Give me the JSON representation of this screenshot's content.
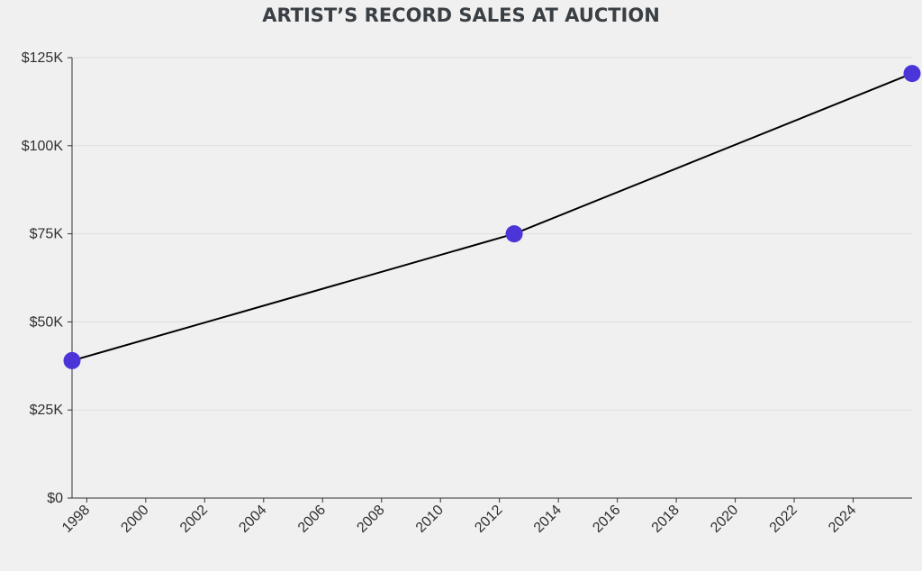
{
  "chart_data": {
    "type": "line",
    "title": "ARTIST’S RECORD SALES AT AUCTION",
    "xlabel": "",
    "ylabel": "",
    "x_tick_labels": [
      "1998",
      "2000",
      "2002",
      "2004",
      "2006",
      "2008",
      "2010",
      "2012",
      "2014",
      "2016",
      "2018",
      "2020",
      "2022",
      "2024"
    ],
    "y_tick_labels": [
      "$0",
      "$25K",
      "$50K",
      "$75K",
      "$100K",
      "$125K"
    ],
    "y_ticks": [
      0,
      25000,
      50000,
      75000,
      100000,
      125000
    ],
    "x_ticks": [
      1998,
      2000,
      2002,
      2004,
      2006,
      2008,
      2010,
      2012,
      2014,
      2016,
      2018,
      2020,
      2022,
      2024
    ],
    "xlim": [
      1997.5,
      2026
    ],
    "ylim": [
      0,
      125000
    ],
    "grid": "horizontal",
    "series": [
      {
        "x": [
          1997.5,
          2012.5,
          2026
        ],
        "values": [
          39000,
          75000,
          120500
        ]
      }
    ],
    "line_color": "#000000",
    "marker_color": "#4b35d8"
  }
}
